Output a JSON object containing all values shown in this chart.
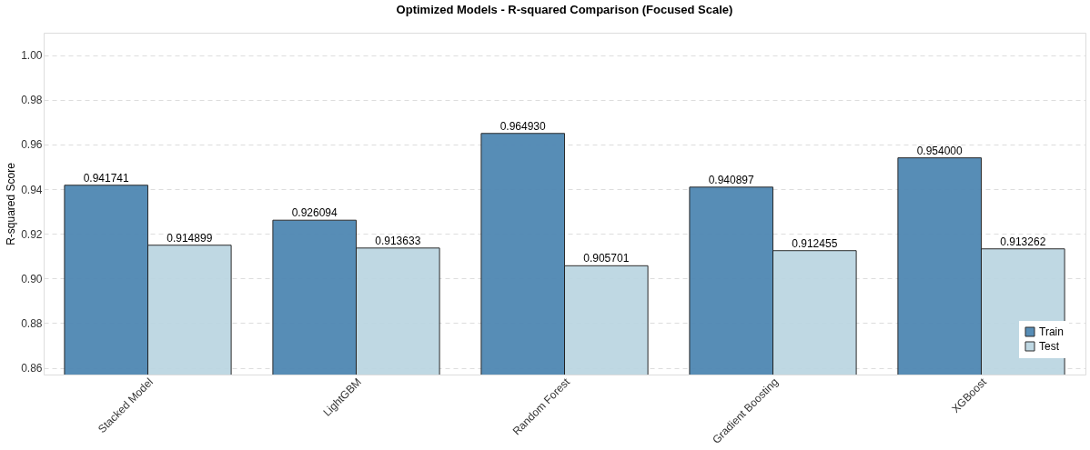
{
  "chart_data": {
    "type": "bar",
    "title": "Optimized Models - R-squared Comparison (Focused Scale)",
    "ylabel": "R-squared Score",
    "categories": [
      "Stacked Model",
      "LightGBM",
      "Random Forest",
      "Gradient Boosting",
      "XGBoost"
    ],
    "series": [
      {
        "name": "Train",
        "color": "#4f87b3",
        "values": [
          0.941741,
          0.926094,
          0.96493,
          0.940897,
          0.954
        ],
        "value_labels": [
          "0.941741",
          "0.926094",
          "0.964930",
          "0.940897",
          "0.954000"
        ]
      },
      {
        "name": "Test",
        "color": "#bcd6e2",
        "values": [
          0.914899,
          0.913633,
          0.905701,
          0.912455,
          0.913262
        ],
        "value_labels": [
          "0.914899",
          "0.913633",
          "0.905701",
          "0.912455",
          "0.913262"
        ]
      }
    ],
    "ylim": [
      0.857,
      1.01
    ],
    "yticks": [
      0.86,
      0.88,
      {
        "value": 0.9,
        "label": "0.90"
      },
      0.92,
      0.94,
      0.96,
      0.98,
      {
        "value": 1,
        "label": "1.00"
      }
    ],
    "grid": "y",
    "legend": "bottom right"
  }
}
